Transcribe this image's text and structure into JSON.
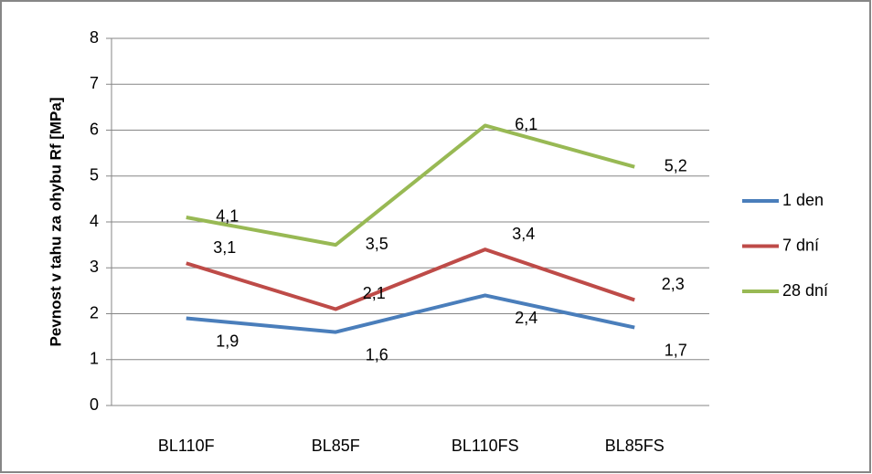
{
  "chart_data": {
    "type": "line",
    "y_label": "Pevnost v tahu za ohybu Rf [MPa]",
    "categories": [
      "BL110F",
      "BL85F",
      "BL110FS",
      "BL85FS"
    ],
    "series": [
      {
        "name": "1 den",
        "color": "#4a7ebb",
        "values": [
          1.9,
          1.6,
          2.4,
          1.7
        ],
        "value_labels": [
          "1,9",
          "1,6",
          "2,4",
          "1,7"
        ]
      },
      {
        "name": "7 dní",
        "color": "#be4b48",
        "values": [
          3.1,
          2.1,
          3.4,
          2.3
        ],
        "value_labels": [
          "3,1",
          "2,1",
          "3,4",
          "2,3"
        ]
      },
      {
        "name": "28 dní",
        "color": "#98b954",
        "values": [
          4.1,
          3.5,
          6.1,
          5.2
        ],
        "value_labels": [
          "4,1",
          "3,5",
          "6,1",
          "5,2"
        ]
      }
    ],
    "ylim": [
      0,
      8
    ],
    "yticks": [
      0,
      1,
      2,
      3,
      4,
      5,
      6,
      7,
      8
    ],
    "grid": true,
    "legend": "right"
  }
}
